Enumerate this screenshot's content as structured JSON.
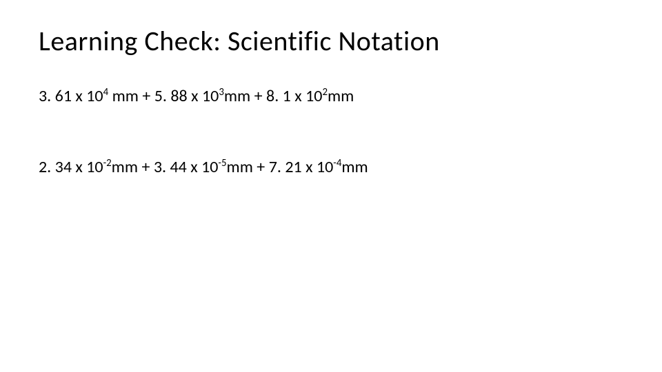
{
  "title": "Learning Check: Scientific Notation",
  "colors": {
    "background": "#ffffff",
    "text": "#000000"
  },
  "typography": {
    "title_fontsize": 40,
    "body_fontsize": 24,
    "font_family": "Calibri"
  },
  "lines": [
    {
      "terms": [
        {
          "coef": "3. 61",
          "base": "10",
          "exp": "4",
          "unit": "mm",
          "space_before_unit": true
        },
        {
          "coef": "5. 88",
          "base": "10",
          "exp": "3",
          "unit": "mm",
          "space_before_unit": false
        },
        {
          "coef": "8. 1",
          "base": "10",
          "exp": "2",
          "unit": "mm",
          "space_before_unit": false
        }
      ],
      "operator": "+"
    },
    {
      "terms": [
        {
          "coef": "2. 34",
          "base": "10",
          "exp": "-2",
          "unit": "mm",
          "space_before_unit": false
        },
        {
          "coef": "3. 44",
          "base": "10",
          "exp": "-5",
          "unit": "mm",
          "space_before_unit": false
        },
        {
          "coef": "7. 21",
          "base": "10",
          "exp": "-4",
          "unit": "mm",
          "space_before_unit": false
        }
      ],
      "operator": "+"
    }
  ]
}
